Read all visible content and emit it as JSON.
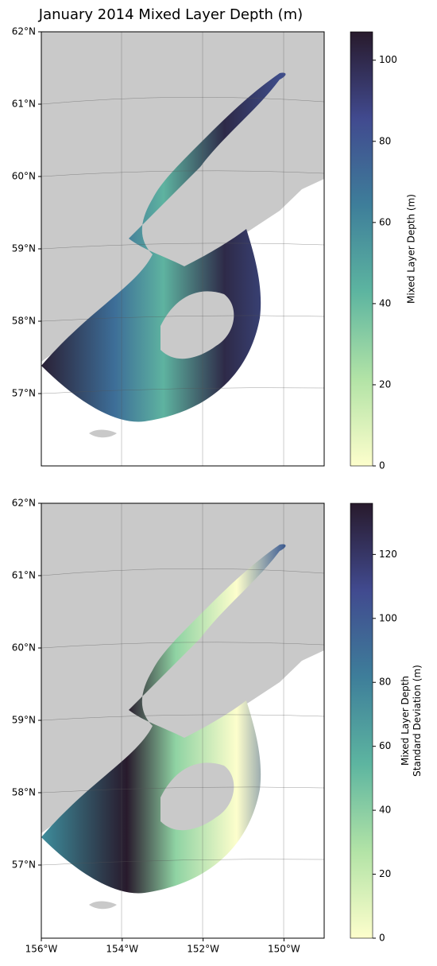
{
  "title": "January 2014 Mixed Layer Depth (m)",
  "lat_labels": [
    "62°N",
    "61°N",
    "60°N",
    "59°N",
    "58°N",
    "57°N"
  ],
  "lon_labels": [
    "156°W",
    "154°W",
    "152°W",
    "150°W"
  ],
  "panels": [
    {
      "colorbar": {
        "label": [
          "Mixed Layer Depth (m)"
        ],
        "lim": [
          0,
          107
        ],
        "ticks": [
          0,
          20,
          40,
          60,
          80,
          100
        ]
      }
    },
    {
      "colorbar": {
        "label": [
          "Mixed Layer Depth",
          "Standard Deviation (m)"
        ],
        "lim": [
          0,
          136
        ],
        "ticks": [
          0,
          20,
          40,
          60,
          80,
          100,
          120
        ]
      }
    }
  ]
}
